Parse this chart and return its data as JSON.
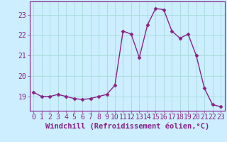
{
  "x": [
    0,
    1,
    2,
    3,
    4,
    5,
    6,
    7,
    8,
    9,
    10,
    11,
    12,
    13,
    14,
    15,
    16,
    17,
    18,
    19,
    20,
    21,
    22,
    23
  ],
  "y": [
    19.2,
    19.0,
    19.0,
    19.1,
    19.0,
    18.9,
    18.85,
    18.9,
    19.0,
    19.1,
    19.55,
    22.2,
    22.05,
    20.9,
    22.5,
    23.3,
    23.25,
    22.2,
    21.85,
    22.05,
    21.0,
    19.4,
    18.6,
    18.5
  ],
  "line_color": "#882288",
  "marker": "D",
  "markersize": 2.5,
  "linewidth": 1.0,
  "bg_color": "#cceeff",
  "grid_color": "#aadddd",
  "xlabel": "Windchill (Refroidissement éolien,°C)",
  "xlabel_fontsize": 7.5,
  "tick_fontsize": 7,
  "yticks": [
    19,
    20,
    21,
    22,
    23
  ],
  "xticks": [
    0,
    1,
    2,
    3,
    4,
    5,
    6,
    7,
    8,
    9,
    10,
    11,
    12,
    13,
    14,
    15,
    16,
    17,
    18,
    19,
    20,
    21,
    22,
    23
  ],
  "ylim": [
    18.3,
    23.65
  ],
  "xlim": [
    -0.5,
    23.5
  ]
}
